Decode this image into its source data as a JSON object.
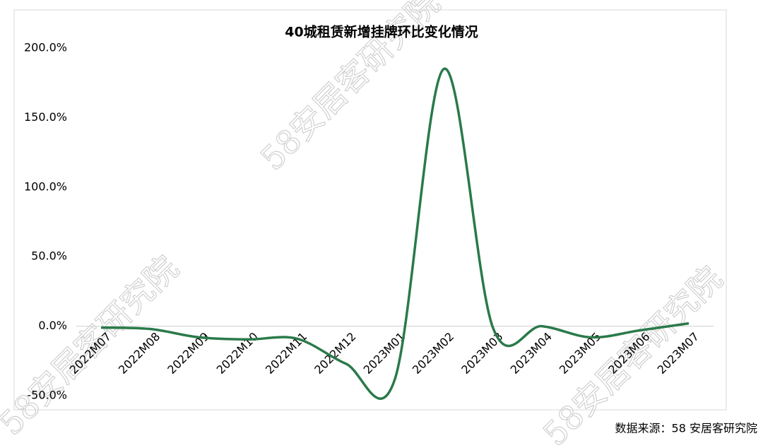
{
  "chart_data": {
    "type": "line",
    "title": "40城租赁新增挂牌环比变化情况",
    "source": "数据来源：58 安居客研究院",
    "watermark": "58安居客研究院",
    "categories": [
      "2022M07",
      "2022M08",
      "2022M09",
      "2022M10",
      "2022M11",
      "2022M12",
      "2023M01",
      "2023M02",
      "2023M03",
      "2023M04",
      "2023M05",
      "2023M06",
      "2023M07"
    ],
    "series": [
      {
        "name": "环比",
        "color": "#2a7a4a",
        "values": [
          -1,
          -2,
          -8,
          -9.5,
          -9,
          -27,
          -38,
          185,
          -1,
          0,
          -8,
          -3,
          2
        ]
      }
    ],
    "ylim": [
      -50,
      200
    ],
    "yticks": [
      {
        "value": -50,
        "label": "-50.0%"
      },
      {
        "value": 0,
        "label": "0.0%"
      },
      {
        "value": 50,
        "label": "50.0%"
      },
      {
        "value": 100,
        "label": "100.0%"
      },
      {
        "value": 150,
        "label": "150.0%"
      },
      {
        "value": 200,
        "label": "200.0%"
      }
    ],
    "grid": false
  }
}
